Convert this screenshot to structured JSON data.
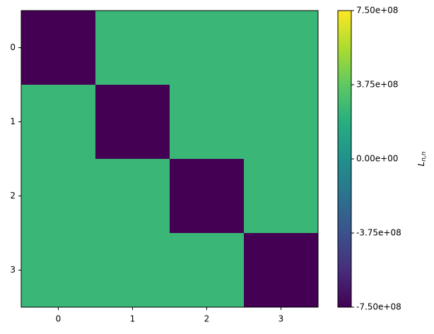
{
  "chart_data": {
    "type": "heatmap",
    "x": [
      0,
      1,
      2,
      3
    ],
    "y": [
      0,
      1,
      2,
      3
    ],
    "z": [
      [
        -750000000,
        250000000,
        250000000,
        250000000
      ],
      [
        250000000,
        -750000000,
        250000000,
        250000000
      ],
      [
        250000000,
        250000000,
        -750000000,
        250000000
      ],
      [
        250000000,
        250000000,
        250000000,
        -750000000
      ]
    ],
    "xlim": [
      -0.5,
      3.5
    ],
    "ylim": [
      3.5,
      -0.5
    ],
    "xticks": [
      0,
      1,
      2,
      3
    ],
    "yticks": [
      0,
      1,
      2,
      3
    ],
    "colormap": "viridis",
    "clim": [
      -750000000,
      750000000
    ],
    "cticks": [
      {
        "value": -750000000,
        "label": "-7.50e+08"
      },
      {
        "value": -375000000,
        "label": "-3.75e+08"
      },
      {
        "value": 0,
        "label": "0.00e+00"
      },
      {
        "value": 375000000,
        "label": "3.75e+08"
      },
      {
        "value": 750000000,
        "label": "7.50e+08"
      }
    ],
    "colorbar_label": {
      "main": "L",
      "sub": "n,n"
    }
  }
}
